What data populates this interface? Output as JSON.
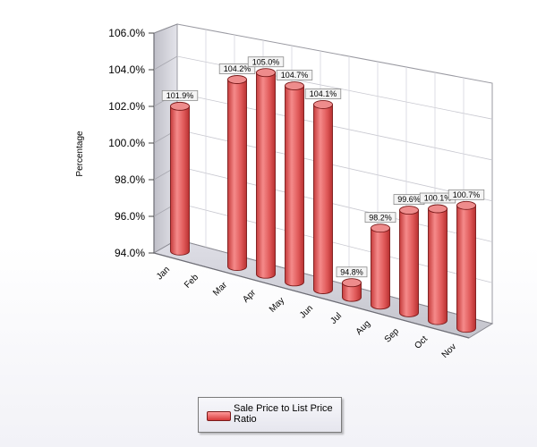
{
  "chart_data": {
    "type": "bar",
    "style": "3d-cylinder",
    "categories": [
      "Jan",
      "Feb",
      "Mar",
      "Apr",
      "May",
      "Jun",
      "Jul",
      "Aug",
      "Sep",
      "Oct",
      "Nov"
    ],
    "series": [
      {
        "name": "Sale Price to List Price Ratio",
        "values": [
          101.9,
          null,
          104.2,
          105.0,
          104.7,
          104.1,
          94.8,
          98.2,
          99.6,
          100.1,
          100.7
        ],
        "labels": [
          "101.9%",
          "",
          "104.2%",
          "105.0%",
          "104.7%",
          "104.1%",
          "94.8%",
          "98.2%",
          "99.6%",
          "100.1%",
          "100.7%"
        ],
        "color": "#e05a5a"
      }
    ],
    "ylabel": "Percentage",
    "xlabel": "",
    "ylim": [
      94.0,
      106.0
    ],
    "yticks": [
      94.0,
      96.0,
      98.0,
      100.0,
      102.0,
      104.0,
      106.0
    ],
    "yticklabels": [
      "94.0%",
      "96.0%",
      "98.0%",
      "100.0%",
      "102.0%",
      "104.0%",
      "106.0%"
    ],
    "grid": true,
    "legend_position": "bottom-center"
  },
  "legend": {
    "label": "Sale Price to List Price Ratio"
  },
  "colors": {
    "bar_fill": "#e05a5a",
    "bar_top": "#ef8e8e",
    "bar_edge": "#7a1a1a",
    "back_wall": "#ffffff",
    "side_wall": "#d0d0d8",
    "floor": "#cfcfd8",
    "grid": "#c8c8d0"
  }
}
